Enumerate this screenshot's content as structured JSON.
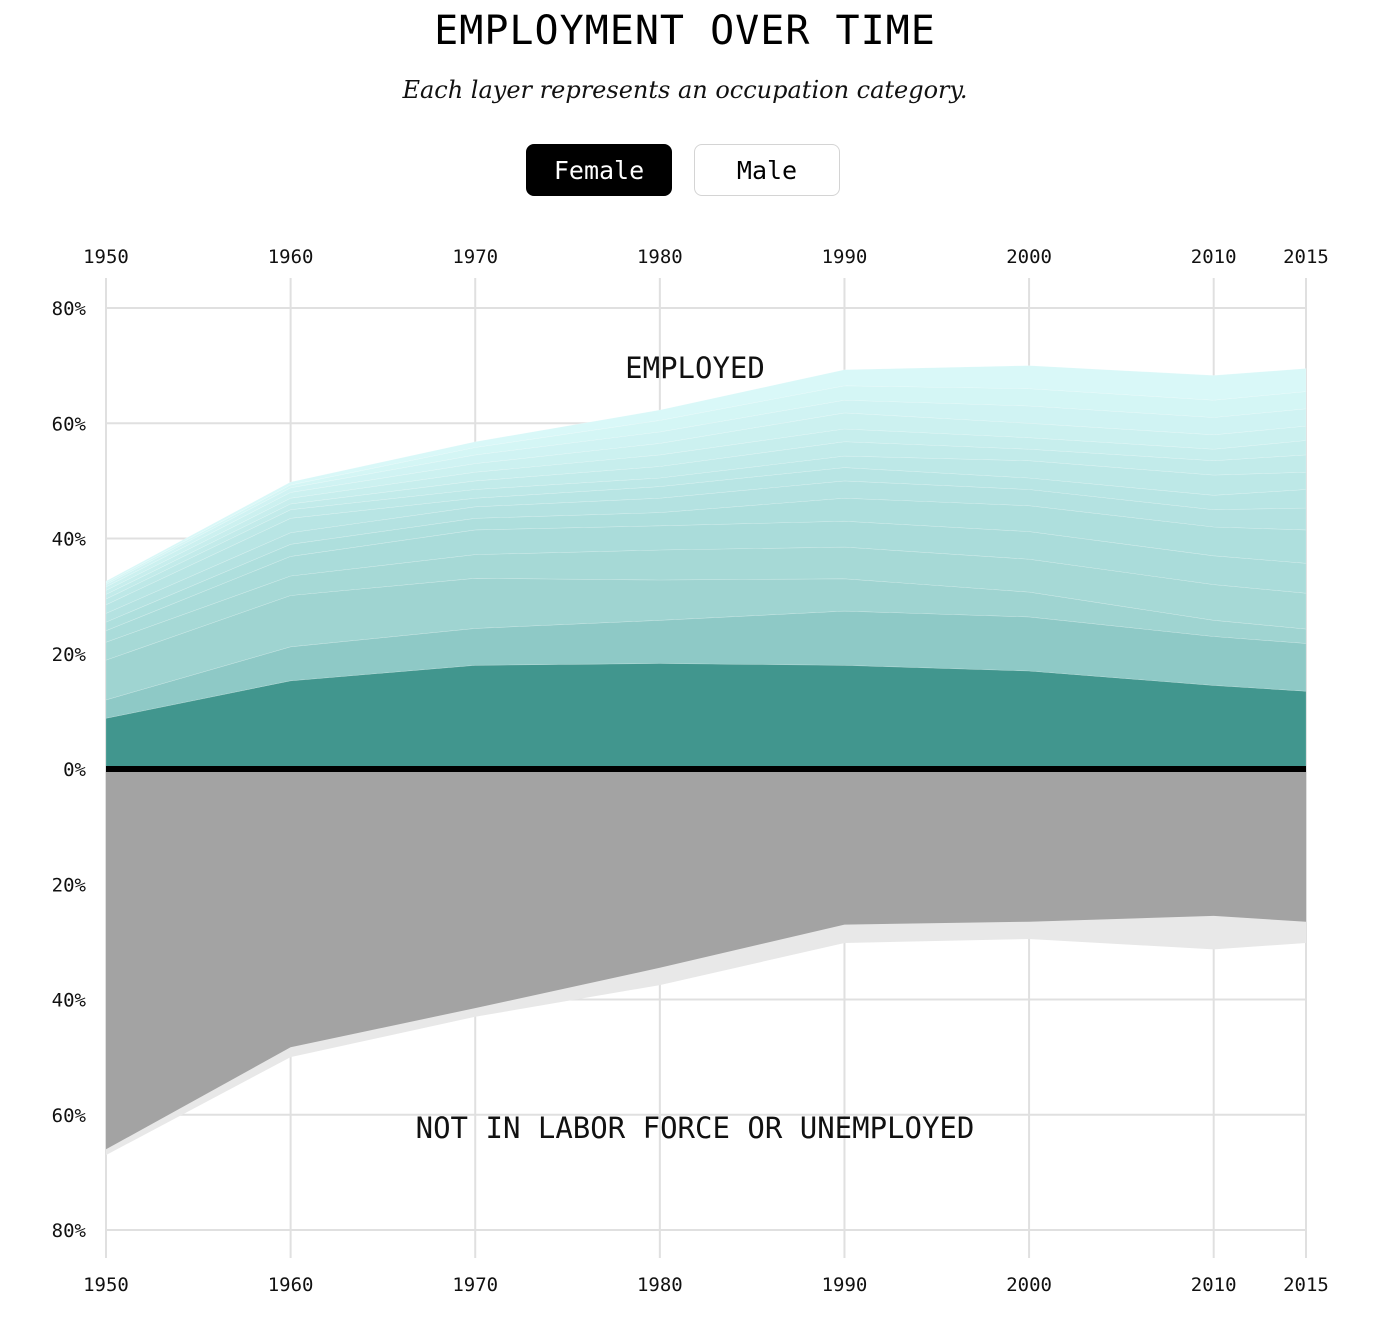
{
  "header": {
    "title": "EMPLOYMENT OVER TIME",
    "subtitle": "Each layer represents an occupation category."
  },
  "toggle": {
    "female_label": "Female",
    "male_label": "Male",
    "selected": "Female"
  },
  "chart_data": {
    "type": "area",
    "stacked": true,
    "x": [
      1950,
      1960,
      1970,
      1980,
      1990,
      2000,
      2010,
      2015
    ],
    "x_tick_labels": [
      "1950",
      "1960",
      "1970",
      "1980",
      "1990",
      "2000",
      "2010",
      "2015"
    ],
    "y_ticks": [
      80,
      60,
      40,
      20,
      0,
      -20,
      -40,
      -60,
      -80
    ],
    "y_tick_labels": [
      "80%",
      "60%",
      "40%",
      "20%",
      "0%",
      "20%",
      "40%",
      "60%",
      "80%"
    ],
    "ylim": [
      -80,
      80
    ],
    "grid": true,
    "annotations": {
      "employed": "EMPLOYED",
      "not_employed": "NOT IN LABOR FORCE OR UNEMPLOYED"
    },
    "employed_boundaries": [
      [
        8.8,
        15.3,
        18.0,
        18.3,
        18.0,
        17.0,
        14.5,
        13.5
      ],
      [
        12.0,
        21.2,
        24.4,
        25.8,
        27.4,
        26.4,
        23.0,
        21.8
      ],
      [
        18.9,
        30.1,
        33.1,
        32.8,
        33.0,
        30.7,
        25.8,
        24.3
      ],
      [
        22.0,
        33.5,
        37.2,
        38.0,
        38.5,
        36.4,
        32.0,
        30.5
      ],
      [
        24.0,
        36.9,
        41.5,
        42.2,
        43.0,
        41.2,
        37.0,
        35.7
      ],
      [
        25.5,
        39.0,
        43.5,
        44.5,
        47.0,
        45.7,
        42.0,
        41.5
      ],
      [
        27.0,
        41.0,
        45.5,
        47.0,
        50.0,
        48.5,
        45.0,
        45.3
      ],
      [
        28.5,
        43.5,
        47.0,
        49.0,
        52.3,
        50.5,
        47.5,
        48.5
      ],
      [
        29.5,
        45.0,
        48.5,
        50.5,
        54.3,
        53.5,
        51.0,
        51.5
      ],
      [
        30.3,
        46.0,
        50.0,
        52.5,
        56.8,
        55.5,
        53.5,
        54.5
      ],
      [
        31.0,
        47.0,
        51.5,
        54.5,
        59.0,
        57.5,
        55.5,
        57.0
      ],
      [
        31.6,
        48.0,
        53.0,
        56.5,
        61.8,
        60.0,
        58.0,
        59.5
      ],
      [
        32.0,
        48.8,
        54.5,
        58.5,
        64.0,
        63.0,
        61.0,
        62.5
      ],
      [
        32.3,
        49.3,
        55.8,
        60.5,
        66.5,
        66.0,
        64.0,
        65.5
      ],
      [
        32.6,
        49.8,
        56.8,
        62.3,
        69.3,
        70.0,
        68.3,
        69.5
      ]
    ],
    "not_in_labor_force": [
      66.0,
      48.3,
      41.5,
      34.5,
      27.0,
      26.5,
      25.5,
      26.5
    ],
    "unemployed_boundary": [
      67.0,
      50.0,
      43.0,
      37.5,
      30.2,
      29.5,
      31.3,
      30.2
    ],
    "colors": {
      "employed_base": "#41968e",
      "employed_layers": [
        "#8ec9c6",
        "#9fd4d1",
        "#a6d9d6",
        "#aadcda",
        "#aedfdd",
        "#b4e2e1",
        "#b8e5e4",
        "#bde8e7",
        "#c2ebea",
        "#c7eeed",
        "#ccf1f0",
        "#d0f3f3",
        "#d4f6f5",
        "#d9f8f8"
      ],
      "not_in_labor_force": "#a3a3a3",
      "unemployed": "#e8e8e8",
      "zero_line": "#000000",
      "grid": "#e0e0e0"
    }
  }
}
